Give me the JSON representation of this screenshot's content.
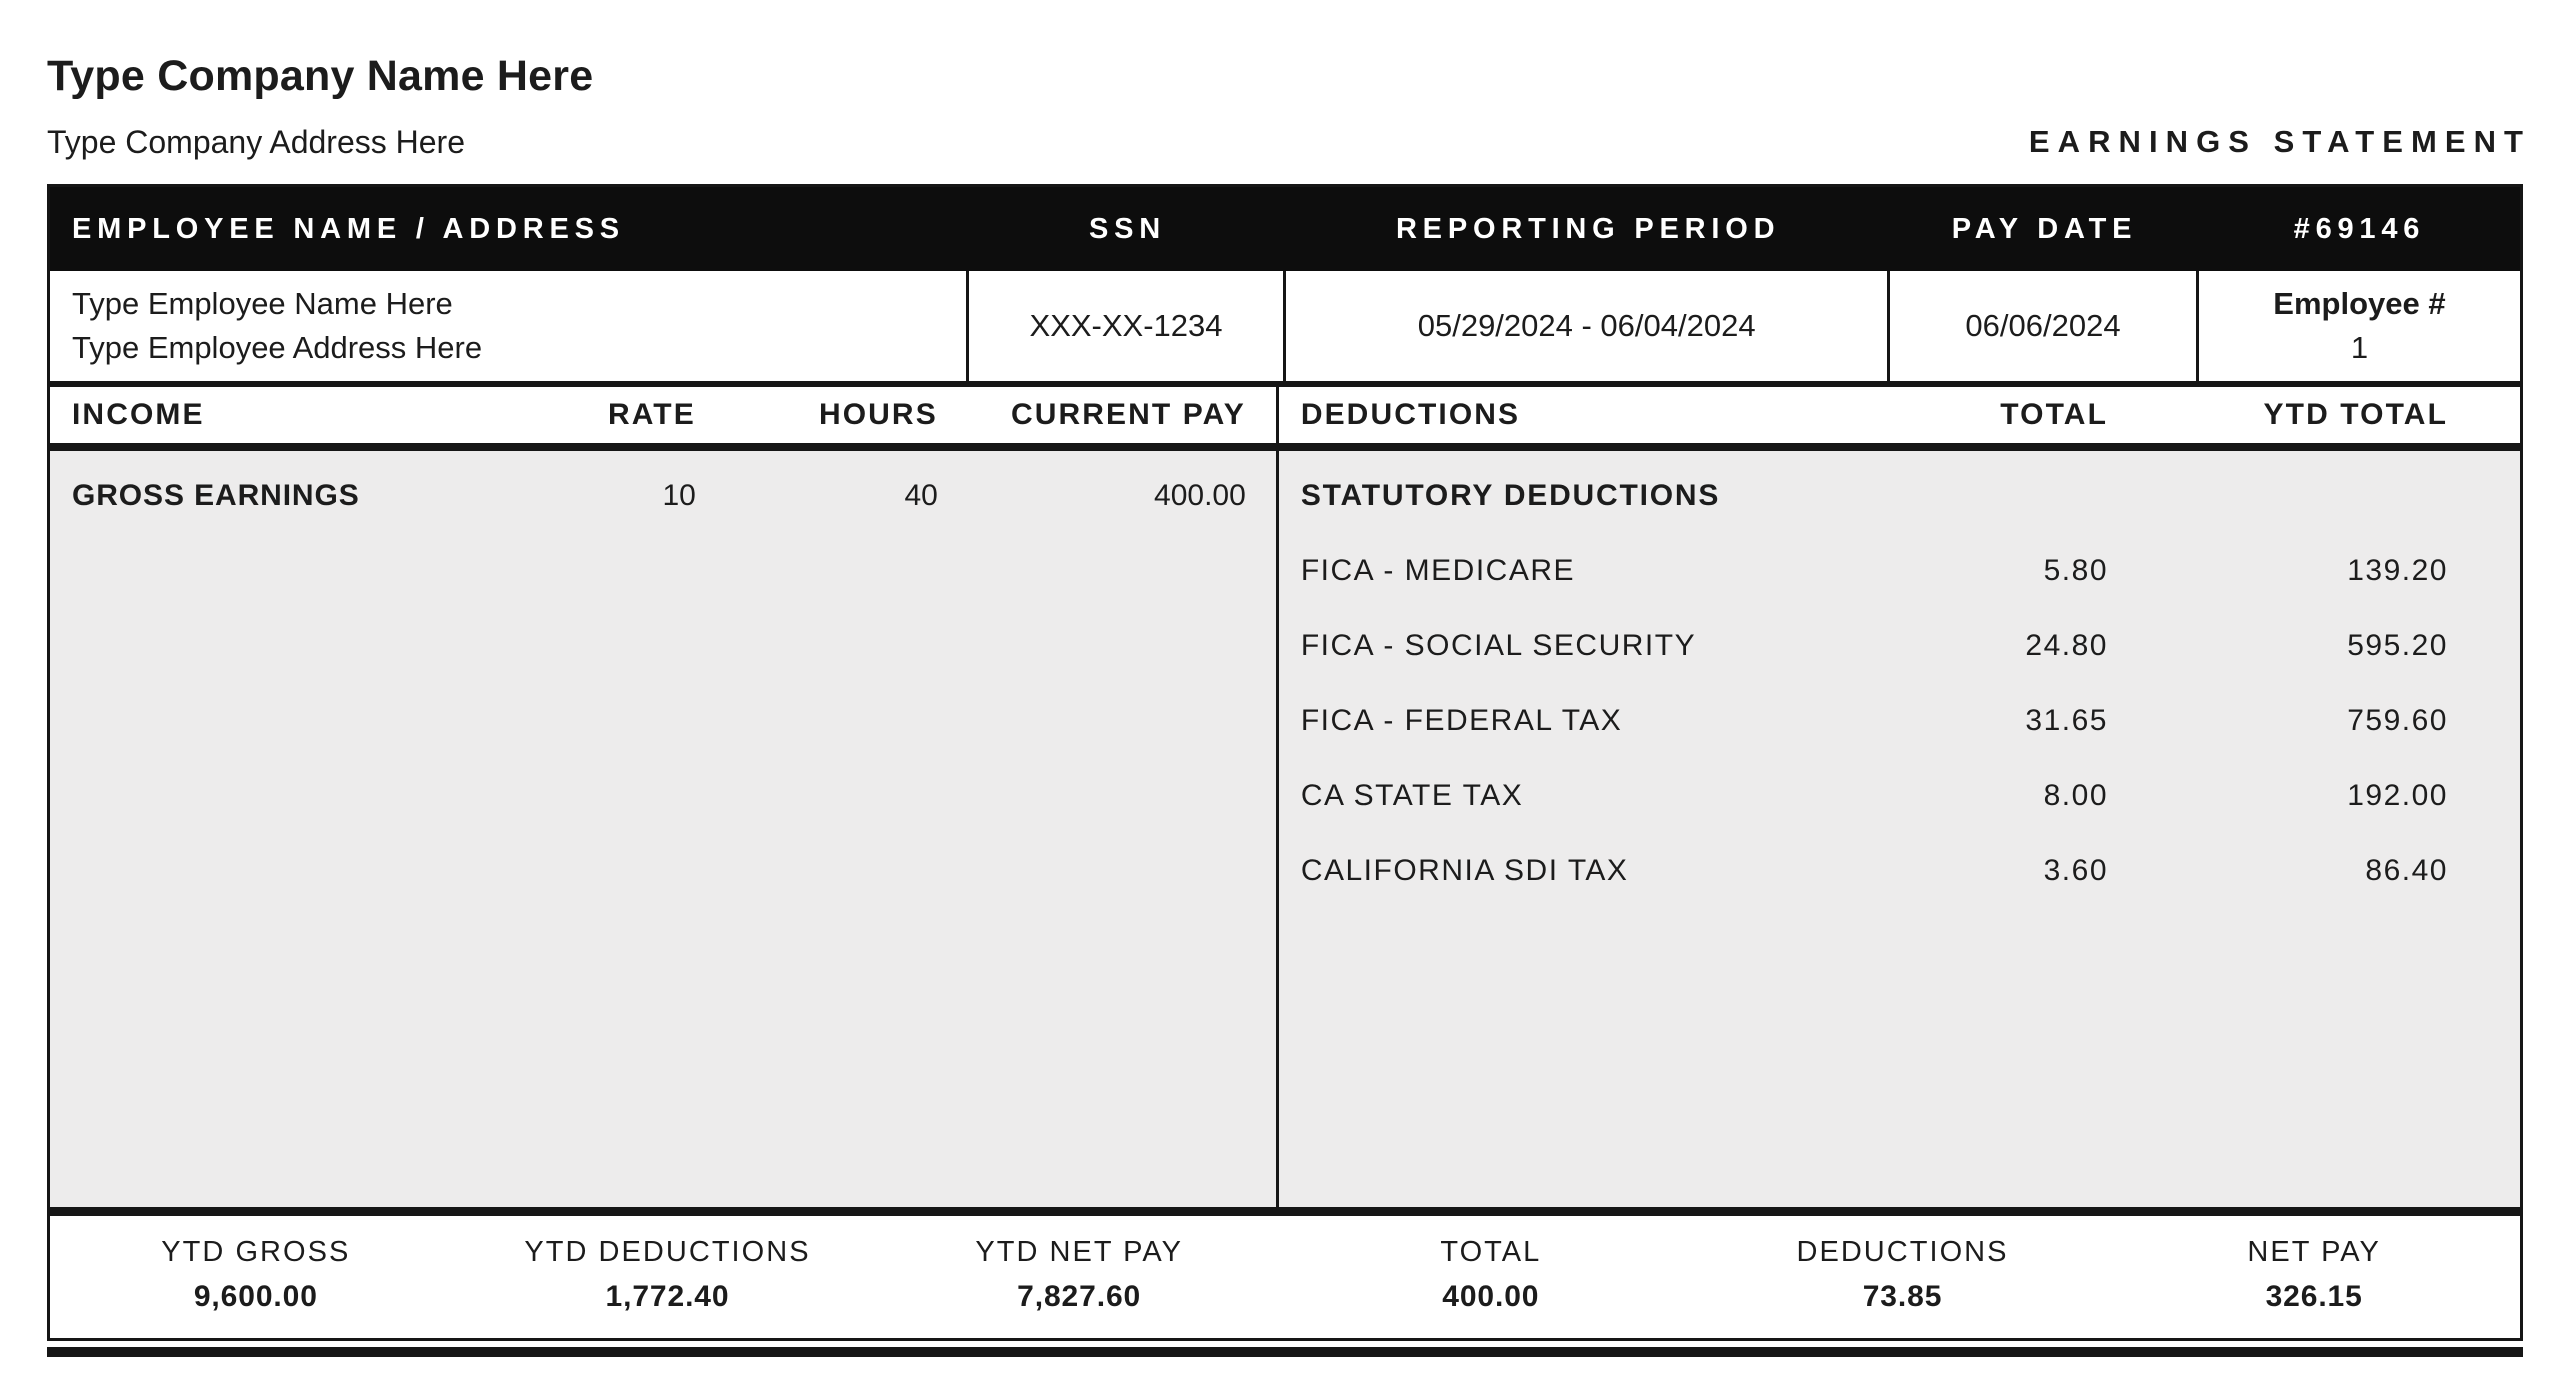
{
  "header": {
    "company_name": "Type Company Name Here",
    "company_address": "Type Company Address Here",
    "document_title": "EARNINGS STATEMENT"
  },
  "band": {
    "employee_label": "EMPLOYEE NAME / ADDRESS",
    "ssn_label": "SSN",
    "reporting_period_label": "REPORTING PERIOD",
    "pay_date_label": "PAY DATE",
    "statement_number": "#69146"
  },
  "employee": {
    "name": "Type Employee Name Here",
    "address": "Type Employee Address Here",
    "ssn": "XXX-XX-1234",
    "reporting_period": "05/29/2024 - 06/04/2024",
    "pay_date": "06/06/2024",
    "employee_number_label": "Employee #",
    "employee_number": "1"
  },
  "income": {
    "headers": {
      "income": "INCOME",
      "rate": "RATE",
      "hours": "HOURS",
      "current_pay": "CURRENT PAY"
    },
    "rows": [
      {
        "label": "GROSS EARNINGS",
        "rate": "10",
        "hours": "40",
        "current_pay": "400.00"
      }
    ]
  },
  "deductions": {
    "headers": {
      "deductions": "DEDUCTIONS",
      "total": "TOTAL",
      "ytd_total": "YTD TOTAL"
    },
    "group_label": "STATUTORY DEDUCTIONS",
    "rows": [
      {
        "label": "FICA - MEDICARE",
        "total": "5.80",
        "ytd": "139.20"
      },
      {
        "label": "FICA - SOCIAL SECURITY",
        "total": "24.80",
        "ytd": "595.20"
      },
      {
        "label": "FICA - FEDERAL TAX",
        "total": "31.65",
        "ytd": "759.60"
      },
      {
        "label": "CA STATE TAX",
        "total": "8.00",
        "ytd": "192.00"
      },
      {
        "label": "CALIFORNIA SDI TAX",
        "total": "3.60",
        "ytd": "86.40"
      }
    ]
  },
  "summary": [
    {
      "label": "YTD GROSS",
      "value": "9,600.00"
    },
    {
      "label": "YTD DEDUCTIONS",
      "value": "1,772.40"
    },
    {
      "label": "YTD NET PAY",
      "value": "7,827.60"
    },
    {
      "label": "TOTAL",
      "value": "400.00"
    },
    {
      "label": "DEDUCTIONS",
      "value": "73.85"
    },
    {
      "label": "NET PAY",
      "value": "326.15"
    }
  ],
  "colors": {
    "band_background": "#0d0d0d",
    "body_background": "#edecec",
    "border": "#161616"
  }
}
